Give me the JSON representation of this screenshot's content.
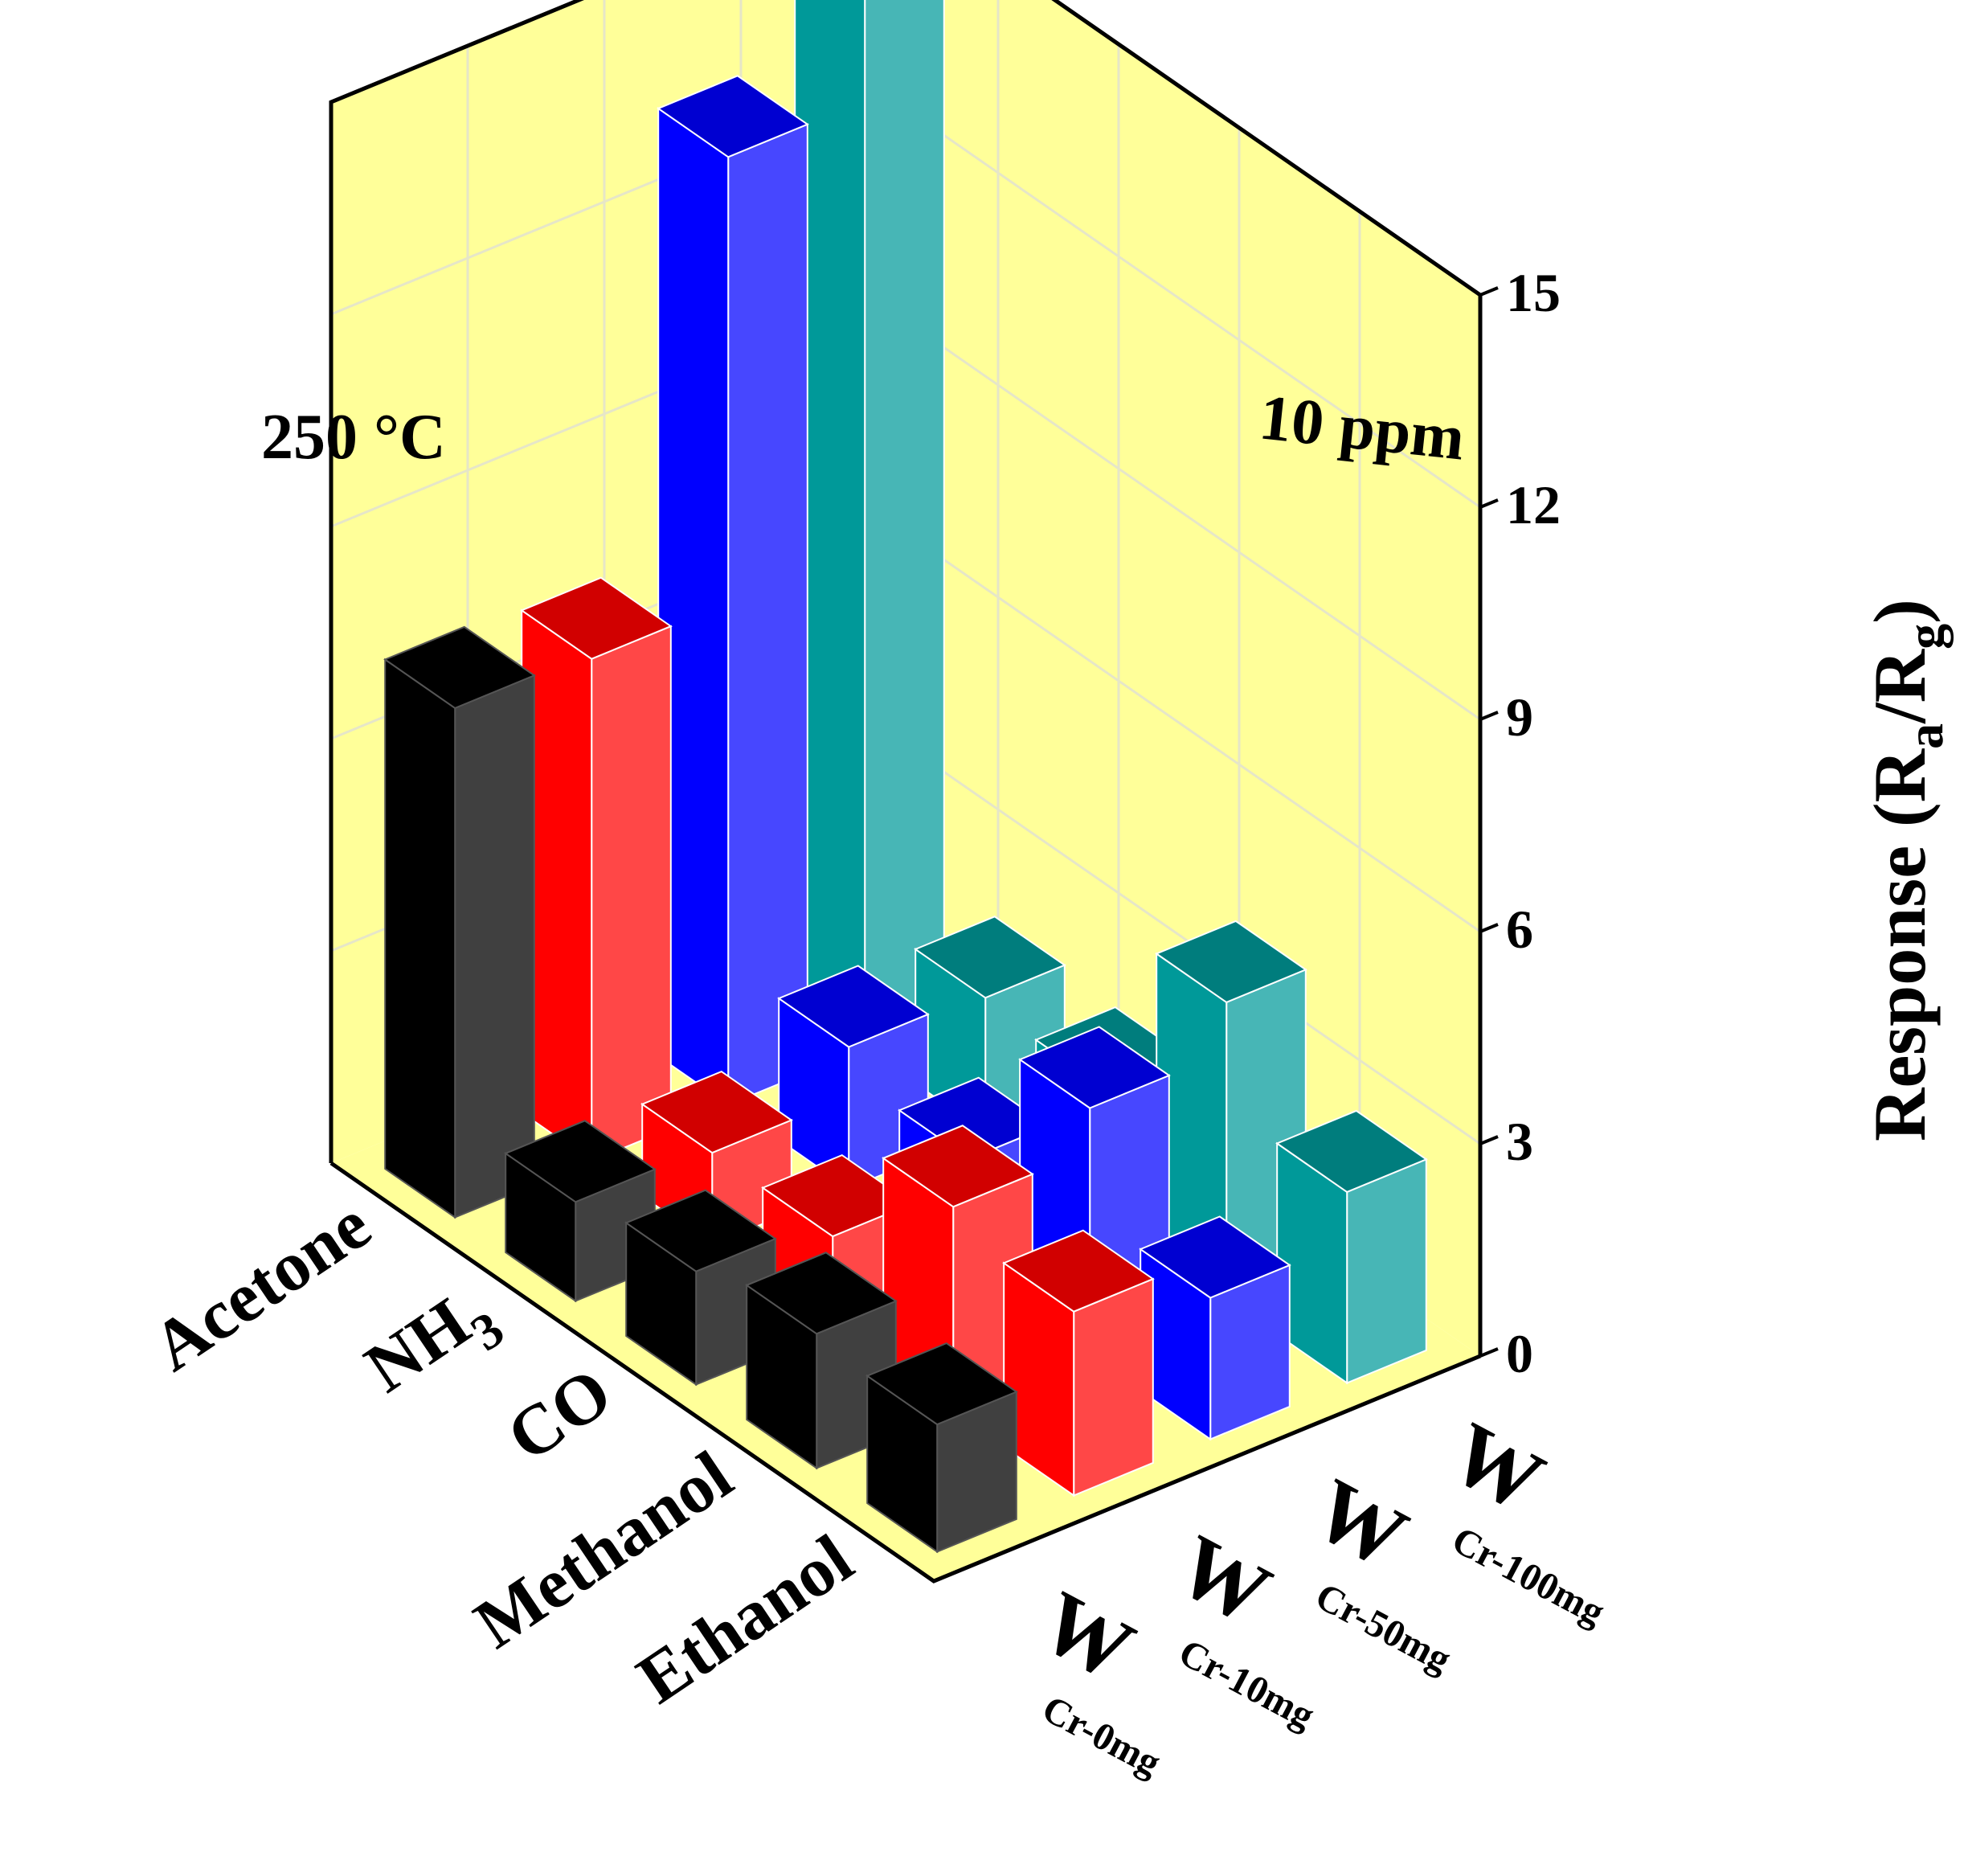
{
  "chart_data": {
    "type": "bar3d",
    "annotations": {
      "temperature": "250 °C",
      "concentration": "10 ppm"
    },
    "z_axis": {
      "label_main": "Response (R",
      "label_sub_a": "a",
      "label_slash": "/R",
      "label_sub_g": "g",
      "label_close": ")",
      "ticks": [
        "0",
        "3",
        "6",
        "9",
        "12",
        "15"
      ],
      "range": [
        0,
        15
      ]
    },
    "gas_axis": {
      "categories": [
        "Acetone",
        "NH",
        "CO",
        "Methanol",
        "Ethanol"
      ],
      "subscripts": [
        "",
        "3",
        "",
        "",
        ""
      ]
    },
    "sample_axis": {
      "categories": [
        {
          "main": "W",
          "sub": "Cr-0mg"
        },
        {
          "main": "W",
          "sub": "Cr-10mg"
        },
        {
          "main": "W",
          "sub": "Cr-50mg"
        },
        {
          "main": "W",
          "sub": "Cr-100mg"
        }
      ]
    },
    "series": [
      {
        "sample_index": 0,
        "color": "#000000",
        "values": [
          7.2,
          1.4,
          1.6,
          1.9,
          1.8
        ]
      },
      {
        "sample_index": 1,
        "color": "#ff0000",
        "values": [
          7.1,
          1.3,
          1.3,
          2.9,
          2.6
        ]
      },
      {
        "sample_index": 2,
        "color": "#0000ff",
        "values": [
          13.4,
          2.0,
          1.6,
          3.5,
          2.0
        ]
      },
      {
        "sample_index": 3,
        "color": "#009999",
        "values": [
          17.3,
          1.9,
          1.8,
          4.2,
          2.7
        ]
      }
    ],
    "colors": {
      "wall": "#ffff99",
      "grid": "#e6e6c8"
    }
  }
}
